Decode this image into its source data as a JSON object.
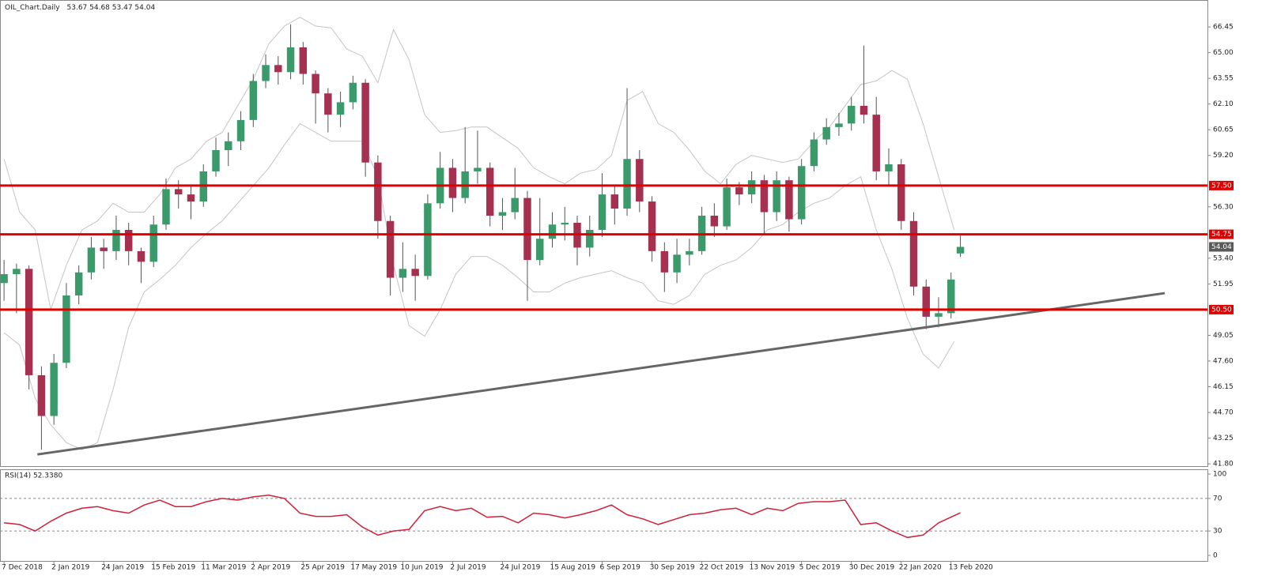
{
  "chart_data": [
    {
      "type": "candlestick",
      "title": "OIL_Chart.Daily",
      "x": [
        0,
        4,
        8,
        12,
        16,
        20,
        24,
        28,
        32,
        36,
        40,
        44,
        48,
        52,
        56,
        60,
        64,
        68,
        72,
        76,
        80,
        84,
        88,
        92,
        96,
        100,
        104,
        108,
        112,
        116,
        120,
        124,
        128,
        132,
        136,
        140,
        144,
        148,
        152,
        156,
        160,
        164,
        168,
        172,
        176,
        180,
        184,
        188,
        192,
        196,
        200,
        204,
        208,
        212,
        216,
        220,
        224,
        228,
        232,
        236,
        240,
        244,
        248,
        252,
        256,
        260,
        264,
        268,
        272,
        276,
        280,
        284,
        288,
        292,
        296,
        300,
        304,
        307
      ],
      "open": [
        52.0,
        52.5,
        52.8,
        46.8,
        44.5,
        47.5,
        51.3,
        52.6,
        54.0,
        53.8,
        55.0,
        53.8,
        53.2,
        55.3,
        57.3,
        57.0,
        56.6,
        58.3,
        59.5,
        60.0,
        61.2,
        63.4,
        64.3,
        63.9,
        65.3,
        63.8,
        62.7,
        61.5,
        62.2,
        63.3,
        58.8,
        55.5,
        52.3,
        52.8,
        52.4,
        56.5,
        58.5,
        56.8,
        58.3,
        58.5,
        55.8,
        56.0,
        56.8,
        53.3,
        54.5,
        55.3,
        55.4,
        54.0,
        55.0,
        57.0,
        56.2,
        59.0,
        56.6,
        53.8,
        52.6,
        53.6,
        53.8,
        55.8,
        55.2,
        57.4,
        57.0,
        57.8,
        56.0,
        57.8,
        55.6,
        58.6,
        60.1,
        60.8,
        61.0,
        62.0,
        61.5,
        58.3,
        58.7,
        55.5,
        51.8,
        50.1,
        50.3,
        53.67
      ],
      "high": [
        53.3,
        53.1,
        53.0,
        47.3,
        48.0,
        52.0,
        53.0,
        54.6,
        54.5,
        55.8,
        55.4,
        54.0,
        55.8,
        57.9,
        57.8,
        57.5,
        58.7,
        60.2,
        60.5,
        61.7,
        63.8,
        64.9,
        64.8,
        66.6,
        65.6,
        64.0,
        63.0,
        62.8,
        63.7,
        63.5,
        59.2,
        55.8,
        54.3,
        53.6,
        57.0,
        59.4,
        59.0,
        60.8,
        60.6,
        58.8,
        56.8,
        58.5,
        57.2,
        56.8,
        56.0,
        56.3,
        55.8,
        55.8,
        58.2,
        57.5,
        63.0,
        59.5,
        56.9,
        54.3,
        54.5,
        54.5,
        56.3,
        56.5,
        57.9,
        57.7,
        58.3,
        58.1,
        58.3,
        58.0,
        59.0,
        60.5,
        61.3,
        61.6,
        62.5,
        65.4,
        62.5,
        59.6,
        59.0,
        56.0,
        52.2,
        51.2,
        52.6,
        54.68
      ],
      "low": [
        51.0,
        50.3,
        46.0,
        42.6,
        44.0,
        47.2,
        50.8,
        52.2,
        52.8,
        53.3,
        53.0,
        52.0,
        52.9,
        55.0,
        56.2,
        55.6,
        56.3,
        58.0,
        58.6,
        59.5,
        60.8,
        63.0,
        63.2,
        63.5,
        63.2,
        61.0,
        60.5,
        60.8,
        61.8,
        58.0,
        54.5,
        51.3,
        51.5,
        51.0,
        52.2,
        56.2,
        56.0,
        56.5,
        57.6,
        55.2,
        55.0,
        55.6,
        51.0,
        53.0,
        54.0,
        54.4,
        53.0,
        53.5,
        54.6,
        55.3,
        55.8,
        56.0,
        53.2,
        51.5,
        52.0,
        53.0,
        53.6,
        54.6,
        55.0,
        56.4,
        56.5,
        54.8,
        55.5,
        54.9,
        55.3,
        58.3,
        59.8,
        60.3,
        60.6,
        61.0,
        57.8,
        57.5,
        55.0,
        51.3,
        49.4,
        49.5,
        50.0,
        53.47
      ],
      "close": [
        52.5,
        52.8,
        46.8,
        44.5,
        47.5,
        51.3,
        52.6,
        54.0,
        53.8,
        55.0,
        53.8,
        53.2,
        55.3,
        57.3,
        57.0,
        56.6,
        58.3,
        59.5,
        60.0,
        61.2,
        63.4,
        64.3,
        63.9,
        65.3,
        63.8,
        62.7,
        61.5,
        62.2,
        63.3,
        58.8,
        55.5,
        52.3,
        52.8,
        52.4,
        56.5,
        58.5,
        56.8,
        58.3,
        58.5,
        55.8,
        56.0,
        56.8,
        53.3,
        54.5,
        55.3,
        55.4,
        54.0,
        55.0,
        57.0,
        56.2,
        59.0,
        56.6,
        53.8,
        52.6,
        53.6,
        53.8,
        55.8,
        55.2,
        57.4,
        57.0,
        57.8,
        56.0,
        57.8,
        55.6,
        58.6,
        60.1,
        60.8,
        61.0,
        62.0,
        61.5,
        58.3,
        58.7,
        55.5,
        51.8,
        50.1,
        50.3,
        52.2,
        54.04
      ],
      "color_up": "#3a9a6a",
      "color_down": "#a5304f",
      "wick_color": "#555555",
      "bands": {
        "color": "#c4c4c4",
        "x": [
          0,
          5,
          10,
          15,
          20,
          25,
          30,
          35,
          40,
          45,
          50,
          55,
          60,
          65,
          70,
          75,
          80,
          85,
          90,
          95,
          100,
          105,
          110,
          115,
          120,
          125,
          130,
          135,
          140,
          145,
          150,
          155,
          160,
          165,
          170,
          175,
          180,
          185,
          190,
          195,
          200,
          205,
          210,
          215,
          220,
          225,
          230,
          235,
          240,
          245,
          250,
          255,
          260,
          265,
          270,
          275,
          280,
          285,
          290,
          295,
          300,
          305
        ],
        "upper": [
          59.0,
          56.0,
          55.0,
          50.5,
          53.0,
          55.0,
          55.5,
          56.5,
          56.0,
          56.0,
          57.0,
          58.5,
          59.0,
          60.0,
          60.5,
          62.0,
          63.5,
          65.5,
          66.5,
          67.0,
          66.5,
          66.4,
          65.2,
          64.8,
          63.3,
          66.3,
          64.6,
          61.5,
          60.5,
          60.6,
          60.8,
          60.8,
          60.2,
          59.6,
          58.5,
          58.0,
          57.6,
          58.2,
          58.4,
          59.2,
          62.3,
          62.8,
          61.0,
          60.5,
          59.5,
          58.3,
          57.6,
          58.7,
          59.2,
          59.0,
          58.8,
          59.0,
          60.0,
          60.8,
          62.0,
          63.2,
          63.4,
          64.0,
          63.5,
          61.0,
          58.0,
          55.0
        ],
        "lower": [
          49.2,
          48.5,
          45.5,
          44.0,
          43.0,
          42.6,
          43.0,
          46.0,
          49.5,
          51.5,
          52.2,
          53.0,
          54.0,
          54.8,
          55.5,
          56.5,
          57.5,
          58.5,
          59.8,
          61.0,
          60.5,
          60.0,
          60.0,
          60.0,
          58.0,
          53.0,
          49.6,
          49.0,
          50.5,
          52.5,
          53.5,
          53.5,
          53.0,
          52.3,
          51.5,
          51.5,
          52.0,
          52.3,
          52.5,
          52.7,
          52.3,
          52.0,
          51.0,
          50.8,
          51.3,
          52.5,
          53.0,
          53.3,
          54.0,
          55.0,
          55.3,
          56.0,
          56.5,
          56.8,
          57.5,
          58.0,
          55.0,
          52.8,
          50.0,
          48.0,
          47.2,
          48.7
        ]
      },
      "levels": [
        {
          "value": 57.5,
          "label": "57.50"
        },
        {
          "value": 54.75,
          "label": "54.75"
        },
        {
          "value": 50.5,
          "label": "50.50"
        }
      ],
      "level_color": "#e00000",
      "last_price_color": "#5a5a5a",
      "trendline": {
        "x": [
          10.7,
          372.6
        ],
        "y": [
          42.33,
          51.43
        ],
        "color": "#666666"
      },
      "xlim": [
        -1.3,
        386.3
      ],
      "ylim": [
        41.67,
        67.97
      ],
      "yticks": [
        {
          "value": 66.45,
          "label": "66.45"
        },
        {
          "value": 65.0,
          "label": "65.00"
        },
        {
          "value": 63.55,
          "label": "63.55"
        },
        {
          "value": 62.1,
          "label": "62.10"
        },
        {
          "value": 60.65,
          "label": "60.65"
        },
        {
          "value": 59.2,
          "label": "59.20"
        },
        {
          "value": 56.3,
          "label": "56.30"
        },
        {
          "value": 53.4,
          "label": "53.40"
        },
        {
          "value": 51.95,
          "label": "51.95"
        },
        {
          "value": 49.05,
          "label": "49.05"
        },
        {
          "value": 47.6,
          "label": "47.60"
        },
        {
          "value": 46.15,
          "label": "46.15"
        },
        {
          "value": 44.7,
          "label": "44.70"
        },
        {
          "value": 43.25,
          "label": "43.25"
        },
        {
          "value": 41.8,
          "label": "41.80"
        }
      ],
      "xticks": [
        {
          "value": 0,
          "label": "7 Dec 2018"
        },
        {
          "value": 16,
          "label": "2 Jan 2019"
        },
        {
          "value": 32,
          "label": "24 Jan 2019"
        },
        {
          "value": 48,
          "label": "15 Feb 2019"
        },
        {
          "value": 64,
          "label": "11 Mar 2019"
        },
        {
          "value": 80,
          "label": "2 Apr 2019"
        },
        {
          "value": 96,
          "label": "25 Apr 2019"
        },
        {
          "value": 112,
          "label": "17 May 2019"
        },
        {
          "value": 128,
          "label": "10 Jun 2019"
        },
        {
          "value": 144,
          "label": "2 Jul 2019"
        },
        {
          "value": 160,
          "label": "24 Jul 2019"
        },
        {
          "value": 176,
          "label": "15 Aug 2019"
        },
        {
          "value": 192,
          "label": "6 Sep 2019"
        },
        {
          "value": 208,
          "label": "30 Sep 2019"
        },
        {
          "value": 224,
          "label": "22 Oct 2019"
        },
        {
          "value": 240,
          "label": "13 Nov 2019"
        },
        {
          "value": 256,
          "label": "5 Dec 2019"
        },
        {
          "value": 272,
          "label": "30 Dec 2019"
        },
        {
          "value": 288,
          "label": "22 Jan 2020"
        },
        {
          "value": 304,
          "label": "13 Feb 2020"
        }
      ]
    },
    {
      "type": "line",
      "title": "RSI(14) 52.3380",
      "color": "#d0203a",
      "x": [
        0,
        5,
        10,
        15,
        20,
        25,
        30,
        35,
        40,
        45,
        50,
        55,
        60,
        65,
        70,
        75,
        80,
        85,
        90,
        95,
        100,
        105,
        110,
        115,
        120,
        125,
        130,
        135,
        140,
        145,
        150,
        155,
        160,
        165,
        170,
        175,
        180,
        185,
        190,
        195,
        200,
        205,
        210,
        215,
        220,
        225,
        230,
        235,
        240,
        245,
        250,
        255,
        260,
        265,
        270,
        275,
        280,
        285,
        290,
        295,
        300,
        307
      ],
      "values": [
        40,
        38,
        30,
        42,
        52,
        58,
        60,
        55,
        52,
        62,
        68,
        60,
        60,
        66,
        70,
        68,
        72,
        74,
        70,
        52,
        48,
        48,
        50,
        35,
        25,
        30,
        32,
        55,
        60,
        55,
        58,
        47,
        48,
        40,
        52,
        50,
        46,
        50,
        55,
        62,
        50,
        45,
        38,
        44,
        50,
        52,
        56,
        58,
        50,
        58,
        55,
        64,
        66,
        66,
        68,
        38,
        40,
        30,
        22,
        25,
        40,
        52.338
      ],
      "xlim": [
        -1.3,
        386.3
      ],
      "ylim": [
        -6.8,
        104.9
      ],
      "yticks": [
        100,
        70,
        30,
        0
      ]
    }
  ]
}
